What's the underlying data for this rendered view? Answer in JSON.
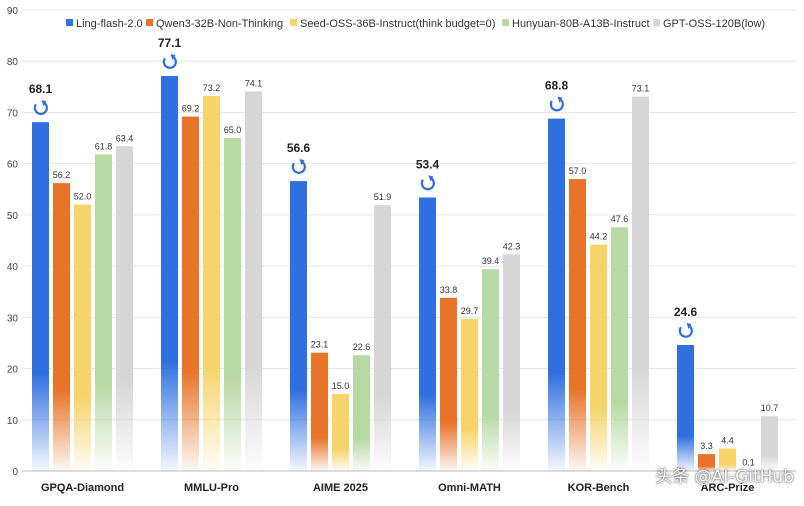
{
  "chart_data": {
    "type": "bar",
    "title": "",
    "xlabel": "",
    "ylabel": "",
    "ylim": [
      0,
      90
    ],
    "yticks": [
      0,
      10,
      20,
      30,
      40,
      50,
      60,
      70,
      80,
      90
    ],
    "grid": true,
    "legend_position": "top",
    "categories": [
      "GPQA-Diamond",
      "MMLU-Pro",
      "AIME 2025",
      "Omni-MATH",
      "KOR-Bench",
      "ARC-Prize"
    ],
    "series": [
      {
        "name": "Ling-flash-2.0",
        "color": "#2f6fe0",
        "values": [
          68.1,
          77.1,
          56.6,
          53.4,
          68.8,
          24.6
        ],
        "highlight": true
      },
      {
        "name": "Qwen3-32B-Non-Thinking",
        "color": "#e8742a",
        "values": [
          56.2,
          69.2,
          23.1,
          33.8,
          57.0,
          3.3
        ]
      },
      {
        "name": "Seed-OSS-36B-Instruct(think budget=0)",
        "color": "#f6d46a",
        "values": [
          52.0,
          73.2,
          15.0,
          29.7,
          44.2,
          4.4
        ]
      },
      {
        "name": "Hunyuan-80B-A13B-Instruct",
        "color": "#b7d9a4",
        "values": [
          61.8,
          65.0,
          22.6,
          39.4,
          47.6,
          0.1
        ]
      },
      {
        "name": "GPT-OSS-120B(low)",
        "color": "#d6d6d6",
        "values": [
          63.4,
          74.1,
          51.9,
          42.3,
          73.1,
          10.7
        ]
      }
    ],
    "highlight_icon": "swirl-logo-icon"
  },
  "watermark": "头条 @AI-GitHub"
}
